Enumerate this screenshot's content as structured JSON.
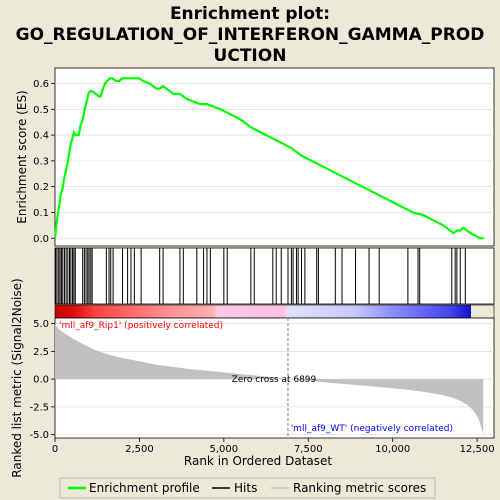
{
  "title_line1": "Enrichment plot:",
  "title_line2": "GO_REGULATION_OF_INTERFERON_GAMMA_PROD",
  "title_line3": "UCTION",
  "colors": {
    "background": "#ece9d8",
    "enrichment_line": "#00ff00",
    "hits": "#000000",
    "ranked_metric_fill": "#c0c0c0",
    "zero_cross_line": "#808080",
    "positive_label": "#ff0000",
    "negative_label": "#0000ff"
  },
  "chart_data": [
    {
      "type": "line",
      "name": "enrichment-score-panel",
      "ylabel": "Enrichment score (ES)",
      "ylim": [
        -0.03,
        0.66
      ],
      "xlim": [
        0,
        13000
      ],
      "yticks": [
        0.0,
        0.1,
        0.2,
        0.3,
        0.4,
        0.5,
        0.6
      ],
      "ytick_labels": [
        "0.0",
        "0.1",
        "0.2",
        "0.3",
        "0.4",
        "0.5",
        "0.6"
      ],
      "grid": true,
      "series": [
        {
          "name": "Enrichment profile",
          "x": [
            0,
            40,
            80,
            130,
            170,
            220,
            270,
            320,
            370,
            420,
            460,
            520,
            560,
            600,
            700,
            760,
            820,
            880,
            940,
            990,
            1040,
            1100,
            1200,
            1300,
            1350,
            1420,
            1480,
            1550,
            1620,
            1700,
            1800,
            1900,
            2000,
            2100,
            2200,
            2300,
            2400,
            2500,
            2600,
            2800,
            3000,
            3100,
            3200,
            3300,
            3500,
            3700,
            3900,
            4100,
            4300,
            4500,
            4700,
            4900,
            5200,
            5500,
            5800,
            6100,
            6400,
            6700,
            7000,
            7300,
            7600,
            7900,
            8200,
            8500,
            8800,
            9100,
            9400,
            9700,
            10000,
            10300,
            10600,
            10900,
            11200,
            11500,
            11700,
            11800,
            11900,
            12000,
            12100,
            12200,
            12300,
            12450,
            12600,
            12700
          ],
          "y": [
            0.0,
            0.05,
            0.09,
            0.13,
            0.17,
            0.19,
            0.23,
            0.26,
            0.29,
            0.33,
            0.36,
            0.39,
            0.41,
            0.4,
            0.4,
            0.44,
            0.46,
            0.5,
            0.53,
            0.56,
            0.57,
            0.57,
            0.56,
            0.55,
            0.55,
            0.58,
            0.6,
            0.61,
            0.62,
            0.62,
            0.61,
            0.61,
            0.62,
            0.62,
            0.62,
            0.62,
            0.62,
            0.62,
            0.61,
            0.6,
            0.58,
            0.58,
            0.59,
            0.58,
            0.56,
            0.56,
            0.54,
            0.53,
            0.52,
            0.52,
            0.51,
            0.5,
            0.48,
            0.46,
            0.43,
            0.41,
            0.39,
            0.37,
            0.35,
            0.32,
            0.3,
            0.28,
            0.26,
            0.24,
            0.22,
            0.2,
            0.18,
            0.16,
            0.14,
            0.12,
            0.1,
            0.09,
            0.07,
            0.05,
            0.03,
            0.02,
            0.03,
            0.03,
            0.04,
            0.03,
            0.02,
            0.01,
            0.0,
            0.0
          ]
        }
      ]
    },
    {
      "type": "scatter",
      "name": "hits-panel",
      "series": [
        {
          "name": "Hits",
          "x": [
            20,
            60,
            110,
            150,
            190,
            230,
            280,
            330,
            380,
            430,
            470,
            520,
            560,
            600,
            820,
            870,
            920,
            970,
            1010,
            1060,
            1100,
            1520,
            1600,
            1650,
            1720,
            2000,
            2150,
            2250,
            2350,
            2550,
            3100,
            3200,
            3700,
            3800,
            4200,
            4400,
            4500,
            4600,
            5000,
            5100,
            5800,
            5900,
            6450,
            6550,
            6700,
            6900,
            7000,
            7050,
            7150,
            7200,
            7300,
            7400,
            7750,
            7800,
            8300,
            8500,
            8900,
            9300,
            9600,
            10450,
            10750,
            10800,
            11750,
            11850,
            11900,
            12000,
            12150
          ]
        }
      ]
    },
    {
      "type": "area",
      "name": "ranked-metric-panel",
      "ylabel": "Ranked list metric (Signal2Noise)",
      "xlabel": "Rank in Ordered Dataset",
      "ylim": [
        -5.3,
        5.5
      ],
      "xlim": [
        0,
        13000
      ],
      "yticks": [
        5.0,
        2.5,
        0.0,
        -2.5,
        -5.0
      ],
      "ytick_labels": [
        "5.0",
        "2.5",
        "0.0",
        "-2.5",
        "-5.0"
      ],
      "xticks": [
        0,
        2500,
        5000,
        7500,
        10000,
        12500
      ],
      "xtick_labels": [
        "0",
        "2,500",
        "5,000",
        "7,500",
        "10,000",
        "12,500"
      ],
      "grid": true,
      "series": [
        {
          "name": "Ranking metric scores",
          "x": [
            0,
            50,
            150,
            300,
            500,
            800,
            1200,
            1600,
            2000,
            2500,
            3000,
            3500,
            4000,
            4500,
            5000,
            5500,
            6000,
            6500,
            6899,
            7500,
            8000,
            8500,
            9000,
            9500,
            10000,
            10500,
            11000,
            11500,
            11800,
            12000,
            12200,
            12350,
            12450,
            12550,
            12620,
            12680
          ],
          "y": [
            4.9,
            4.7,
            4.4,
            4.1,
            3.7,
            3.2,
            2.6,
            2.2,
            1.9,
            1.6,
            1.3,
            1.1,
            0.9,
            0.75,
            0.6,
            0.45,
            0.3,
            0.15,
            0.0,
            -0.15,
            -0.3,
            -0.42,
            -0.55,
            -0.68,
            -0.82,
            -0.98,
            -1.18,
            -1.45,
            -1.7,
            -1.95,
            -2.3,
            -2.7,
            -3.1,
            -3.6,
            -4.3,
            -5.0
          ]
        }
      ],
      "zero_cross": {
        "label": "Zero cross at 6899",
        "x": 6899
      },
      "positive_label": "'mll_af9_Rip1' (positively correlated)",
      "negative_label": "'mll_af9_WT' (negatively correlated)"
    }
  ],
  "legend": {
    "items": [
      {
        "label": "Enrichment profile",
        "symbol": "green-line-icon"
      },
      {
        "label": "Hits",
        "symbol": "black-line-icon"
      },
      {
        "label": "Ranking metric scores",
        "symbol": "gray-line-icon"
      }
    ]
  }
}
